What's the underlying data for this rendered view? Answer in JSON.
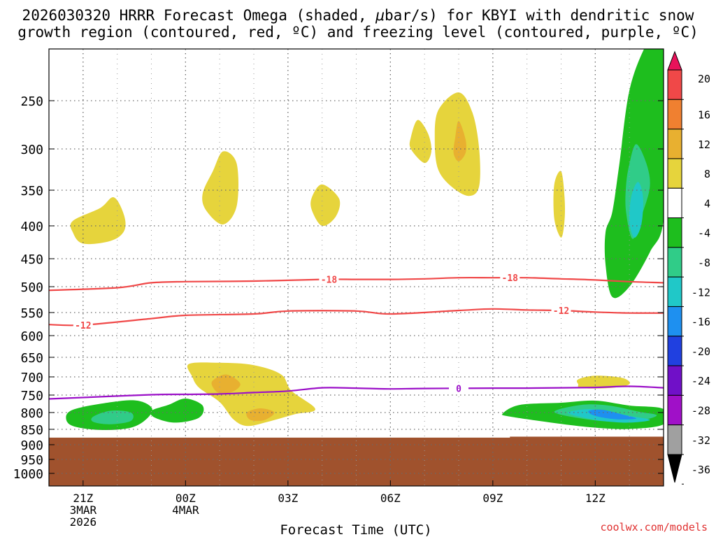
{
  "chart_data": {
    "type": "heatmap",
    "title_line1": "2026030320 HRRR Forecast Omega (shaded, ",
    "title_mu": "μ",
    "title_line1_end": "bar/s) for KBYI with dendritic snow",
    "title_line2": "growth region (contoured, red, ºC) and freezing level (contoured, purple, ºC)",
    "xlabel": "Forecast Time (UTC)",
    "credit": "coolwx.com/models",
    "y_ticks": [
      250,
      300,
      350,
      400,
      450,
      500,
      550,
      600,
      650,
      700,
      750,
      800,
      850,
      900,
      950,
      1000
    ],
    "y_range_hpa": [
      200,
      1050
    ],
    "x_range_hours": [
      -1,
      17
    ],
    "x_ticks": [
      {
        "hour": 0,
        "lines": [
          "21Z",
          "3MAR",
          "2026"
        ]
      },
      {
        "hour": 3,
        "lines": [
          "00Z",
          "4MAR"
        ]
      },
      {
        "hour": 6,
        "lines": [
          "03Z"
        ]
      },
      {
        "hour": 9,
        "lines": [
          "06Z"
        ]
      },
      {
        "hour": 12,
        "lines": [
          "09Z"
        ]
      },
      {
        "hour": 15,
        "lines": [
          "12Z"
        ]
      }
    ],
    "colorbar_labels": [
      "20",
      "16",
      "12",
      "8",
      "4",
      "-4",
      "-8",
      "-12",
      "-16",
      "-20",
      "-24",
      "-28",
      "-32",
      "-36"
    ],
    "colorbar_colors": [
      "#e8125a",
      "#f04848",
      "#f08030",
      "#e8b030",
      "#e6d43c",
      "#ffffff",
      "#1ebe1e",
      "#30cc88",
      "#20c8c8",
      "#1e90f0",
      "#2040e0",
      "#7010c8",
      "#a010c8",
      "#a0a0a0",
      "#000000"
    ],
    "colors": {
      "ground": "#a0522d",
      "dgz_contour": "#f04848",
      "freezing_contour": "#9b10c8",
      "credit": "#e03030"
    },
    "contours": {
      "dgz_minus18": {
        "label": "-18",
        "points": [
          [
            -1.0,
            507
          ],
          [
            1,
            502
          ],
          [
            2,
            493
          ],
          [
            3,
            491
          ],
          [
            5,
            490
          ],
          [
            7,
            487
          ],
          [
            8,
            487
          ],
          [
            9,
            487
          ],
          [
            10,
            486
          ],
          [
            11,
            484
          ],
          [
            12,
            484
          ],
          [
            13,
            484
          ],
          [
            14,
            486
          ],
          [
            15,
            488
          ],
          [
            16,
            491
          ],
          [
            17,
            493
          ]
        ]
      },
      "dgz_minus12": {
        "label": "-12",
        "points": [
          [
            -1.0,
            576
          ],
          [
            0,
            577
          ],
          [
            2,
            563
          ],
          [
            3,
            556
          ],
          [
            5,
            553
          ],
          [
            6,
            547
          ],
          [
            8,
            547
          ],
          [
            9,
            553
          ],
          [
            11,
            546
          ],
          [
            12,
            543
          ],
          [
            13,
            545
          ],
          [
            14,
            546
          ],
          [
            15,
            549
          ],
          [
            16,
            551
          ],
          [
            17,
            551
          ]
        ]
      },
      "freezing_0": {
        "label": "0",
        "points": [
          [
            -1.0,
            761
          ],
          [
            0,
            757
          ],
          [
            2,
            749
          ],
          [
            3,
            748
          ],
          [
            4,
            747
          ],
          [
            5,
            743
          ],
          [
            6,
            739
          ],
          [
            7,
            730
          ],
          [
            8,
            731
          ],
          [
            9,
            733
          ],
          [
            10,
            732
          ],
          [
            12,
            731
          ],
          [
            13,
            731
          ],
          [
            14,
            730
          ],
          [
            15,
            729
          ],
          [
            16,
            726
          ],
          [
            17,
            730
          ]
        ]
      }
    },
    "omega_regions": [
      {
        "sign": "up",
        "level": 4,
        "outline": [
          [
            -0.3,
            393
          ],
          [
            0.5,
            375
          ],
          [
            0.9,
            360
          ],
          [
            1.2,
            385
          ],
          [
            1.2,
            408
          ],
          [
            0.8,
            423
          ],
          [
            0,
            427
          ],
          [
            -0.3,
            410
          ]
        ]
      },
      {
        "sign": "up",
        "level": 4,
        "outline": [
          [
            3.5,
            355
          ],
          [
            3.8,
            327
          ],
          [
            4.1,
            303
          ],
          [
            4.5,
            318
          ],
          [
            4.5,
            372
          ],
          [
            4.1,
            398
          ],
          [
            3.6,
            378
          ]
        ]
      },
      {
        "sign": "up",
        "level": 4,
        "outline": [
          [
            6.7,
            360
          ],
          [
            7.0,
            343
          ],
          [
            7.5,
            362
          ],
          [
            7.4,
            387
          ],
          [
            7.0,
            400
          ],
          [
            6.7,
            378
          ]
        ]
      },
      {
        "sign": "up",
        "level": 4,
        "outline": [
          [
            9.6,
            288
          ],
          [
            9.8,
            270
          ],
          [
            10.1,
            284
          ],
          [
            10.2,
            303
          ],
          [
            10.0,
            317
          ],
          [
            9.6,
            300
          ]
        ]
      },
      {
        "sign": "up",
        "level": 4,
        "outline": [
          [
            10.4,
            260
          ],
          [
            11.0,
            242
          ],
          [
            11.4,
            262
          ],
          [
            11.6,
            300
          ],
          [
            11.6,
            345
          ],
          [
            11.3,
            358
          ],
          [
            10.8,
            346
          ],
          [
            10.4,
            325
          ],
          [
            10.3,
            292
          ]
        ]
      },
      {
        "sign": "up",
        "level": 8,
        "outline": [
          [
            10.9,
            288
          ],
          [
            11.0,
            271
          ],
          [
            11.2,
            290
          ],
          [
            11.2,
            305
          ],
          [
            11.0,
            315
          ],
          [
            10.85,
            305
          ]
        ]
      },
      {
        "sign": "up",
        "level": 4,
        "outline": [
          [
            13.8,
            343
          ],
          [
            14.0,
            327
          ],
          [
            14.1,
            360
          ],
          [
            14.1,
            392
          ],
          [
            14.0,
            418
          ],
          [
            13.8,
            390
          ]
        ]
      },
      {
        "sign": "up",
        "level": 4,
        "outline": [
          [
            3.1,
            667
          ],
          [
            4.0,
            664
          ],
          [
            5.0,
            670
          ],
          [
            5.8,
            694
          ],
          [
            6.1,
            738
          ],
          [
            6.8,
            790
          ],
          [
            6.2,
            805
          ],
          [
            5.4,
            828
          ],
          [
            4.8,
            840
          ],
          [
            4.4,
            820
          ],
          [
            4.0,
            770
          ],
          [
            3.4,
            730
          ],
          [
            3.2,
            700
          ]
        ]
      },
      {
        "sign": "up",
        "level": 8,
        "outline": [
          [
            3.8,
            710
          ],
          [
            4.2,
            694
          ],
          [
            4.6,
            718
          ],
          [
            4.4,
            740
          ],
          [
            4.0,
            745
          ],
          [
            3.8,
            728
          ]
        ]
      },
      {
        "sign": "up",
        "level": 8,
        "outline": [
          [
            4.8,
            800
          ],
          [
            5.2,
            788
          ],
          [
            5.6,
            800
          ],
          [
            5.3,
            823
          ],
          [
            4.9,
            822
          ]
        ]
      },
      {
        "sign": "up",
        "level": 4,
        "outline": [
          [
            14.5,
            707
          ],
          [
            15.0,
            697
          ],
          [
            15.8,
            703
          ],
          [
            16.0,
            720
          ],
          [
            15.5,
            730
          ],
          [
            14.6,
            731
          ],
          [
            14.5,
            720
          ]
        ]
      },
      {
        "sign": "down",
        "level": -4,
        "outline": [
          [
            -0.5,
            815
          ],
          [
            -0.3,
            792
          ],
          [
            0.5,
            775
          ],
          [
            1.5,
            765
          ],
          [
            2.0,
            785
          ],
          [
            1.9,
            815
          ],
          [
            1.4,
            845
          ],
          [
            0.5,
            852
          ],
          [
            -0.3,
            840
          ]
        ]
      },
      {
        "sign": "down",
        "level": -8,
        "outline": [
          [
            0.3,
            812
          ],
          [
            0.8,
            795
          ],
          [
            1.4,
            800
          ],
          [
            1.4,
            825
          ],
          [
            0.8,
            835
          ],
          [
            0.3,
            828
          ]
        ]
      },
      {
        "sign": "down",
        "level": -4,
        "outline": [
          [
            2.0,
            795
          ],
          [
            2.5,
            778
          ],
          [
            3.0,
            760
          ],
          [
            3.5,
            780
          ],
          [
            3.4,
            815
          ],
          [
            2.7,
            830
          ],
          [
            2.1,
            815
          ]
        ]
      },
      {
        "sign": "down",
        "level": -4,
        "outline": [
          [
            12.3,
            802
          ],
          [
            12.8,
            778
          ],
          [
            14.0,
            772
          ],
          [
            15.0,
            766
          ],
          [
            16.0,
            780
          ],
          [
            17.0,
            790
          ],
          [
            17.0,
            835
          ],
          [
            16.0,
            849
          ],
          [
            15.0,
            845
          ],
          [
            14.0,
            834
          ],
          [
            12.5,
            812
          ]
        ]
      },
      {
        "sign": "down",
        "level": -8,
        "outline": [
          [
            13.8,
            798
          ],
          [
            14.6,
            778
          ],
          [
            15.4,
            780
          ],
          [
            16.3,
            798
          ],
          [
            16.8,
            808
          ],
          [
            16.4,
            822
          ],
          [
            15.6,
            828
          ],
          [
            14.6,
            818
          ]
        ]
      },
      {
        "sign": "down",
        "level": -12,
        "outline": [
          [
            14.2,
            800
          ],
          [
            14.8,
            790
          ],
          [
            15.4,
            797
          ],
          [
            16.0,
            810
          ],
          [
            16.6,
            822
          ],
          [
            16.0,
            830
          ],
          [
            15.3,
            826
          ],
          [
            14.6,
            814
          ]
        ]
      },
      {
        "sign": "down",
        "level": -16,
        "outline": [
          [
            14.8,
            796
          ],
          [
            15.2,
            792
          ],
          [
            15.8,
            806
          ],
          [
            16.2,
            818
          ],
          [
            15.6,
            820
          ],
          [
            15.0,
            810
          ]
        ]
      },
      {
        "sign": "down",
        "level": -4,
        "outline": [
          [
            15.5,
            380
          ],
          [
            15.7,
            320
          ],
          [
            16.0,
            240
          ],
          [
            16.5,
            195
          ],
          [
            17.0,
            170
          ],
          [
            17.0,
            260
          ],
          [
            17.0,
            390
          ],
          [
            16.6,
            440
          ],
          [
            16.0,
            500
          ],
          [
            15.5,
            520
          ],
          [
            15.3,
            460
          ],
          [
            15.3,
            410
          ]
        ]
      },
      {
        "sign": "down",
        "level": -8,
        "outline": [
          [
            16.0,
            318
          ],
          [
            16.2,
            295
          ],
          [
            16.5,
            318
          ],
          [
            16.6,
            345
          ],
          [
            16.4,
            380
          ],
          [
            16.1,
            420
          ],
          [
            15.9,
            380
          ],
          [
            15.9,
            345
          ]
        ]
      },
      {
        "sign": "down",
        "level": -12,
        "outline": [
          [
            16.05,
            360
          ],
          [
            16.25,
            340
          ],
          [
            16.4,
            360
          ],
          [
            16.35,
            398
          ],
          [
            16.15,
            418
          ],
          [
            16.0,
            395
          ]
        ]
      }
    ]
  }
}
